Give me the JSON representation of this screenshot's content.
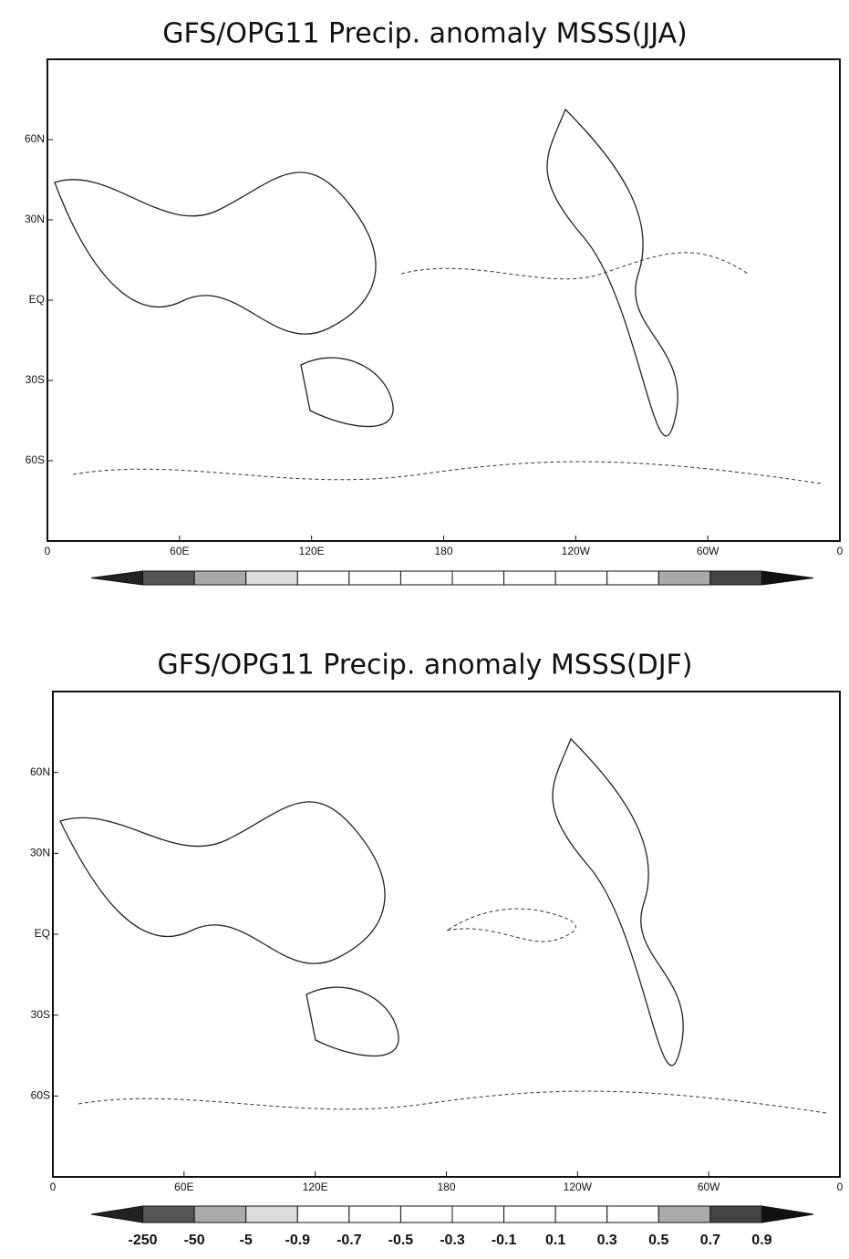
{
  "panels": [
    {
      "title": "GFS/OPG11 Precip. anomaly MSSS(JJA)",
      "x_labels": [
        "0",
        "60E",
        "120E",
        "180",
        "120W",
        "60W",
        "0"
      ],
      "y_labels": [
        "60N",
        "30N",
        "EQ",
        "30S",
        "60S"
      ],
      "colorbar": {
        "colors": [
          "#222",
          "#555",
          "#aaa",
          "#ddd",
          "#fff",
          "#fff",
          "#fff",
          "#fff",
          "#fff",
          "#fff",
          "#fff",
          "#aaa",
          "#444",
          "#111"
        ]
      }
    },
    {
      "title": "GFS/OPG11 Precip. anomaly MSSS(DJF)",
      "x_labels": [
        "0",
        "60E",
        "120E",
        "180",
        "120W",
        "60W",
        "0"
      ],
      "y_labels": [
        "60N",
        "30N",
        "EQ",
        "30S",
        "60S"
      ],
      "colorbar": {
        "colors": [
          "#222",
          "#555",
          "#aaa",
          "#ddd",
          "#fff",
          "#fff",
          "#fff",
          "#fff",
          "#fff",
          "#fff",
          "#fff",
          "#aaa",
          "#444",
          "#111"
        ],
        "labels": [
          "-250",
          "-50",
          "-5",
          "-0.9",
          "-0.7",
          "-0.5",
          "-0.3",
          "-0.1",
          "0.1",
          "0.3",
          "0.5",
          "0.7",
          "0.9"
        ]
      }
    }
  ]
}
